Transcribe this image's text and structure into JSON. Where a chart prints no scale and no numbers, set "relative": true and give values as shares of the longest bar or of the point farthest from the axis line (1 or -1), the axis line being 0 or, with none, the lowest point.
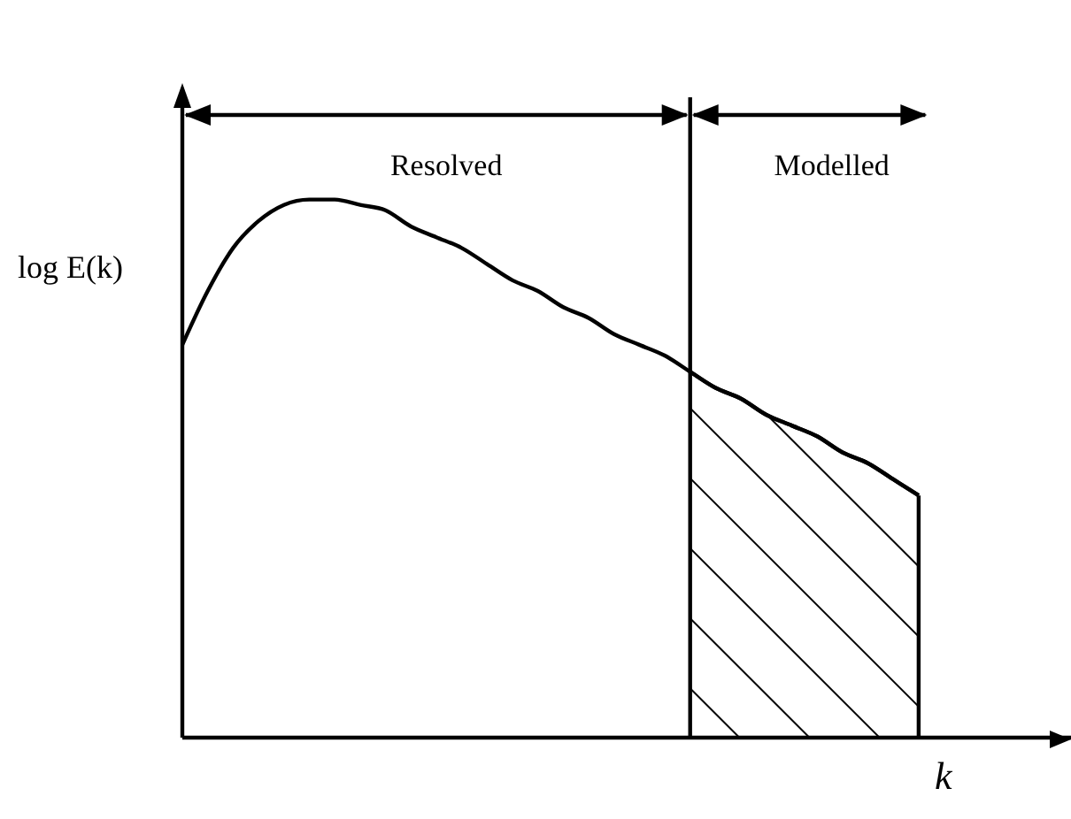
{
  "chart_data": {
    "type": "line",
    "relative": true,
    "xlabel": "k",
    "ylabel": "log E(k)",
    "annotations": [
      "Resolved",
      "Modelled"
    ],
    "categories": [
      null,
      null,
      null,
      null,
      null,
      null,
      null,
      null,
      null,
      null,
      null,
      null,
      null,
      null,
      null,
      null,
      null,
      null,
      null,
      null,
      null,
      null,
      null,
      null,
      null,
      null,
      null,
      null,
      null,
      null,
      null,
      null,
      null,
      null,
      null,
      null
    ],
    "series": [
      {
        "color": "#000000",
        "values": [
          0.73,
          0.83,
          0.91,
          0.96,
          0.99,
          1,
          1,
          0.99,
          0.98,
          0.95,
          0.93,
          0.91,
          0.88,
          0.85,
          0.83,
          0.8,
          0.78,
          0.75,
          0.73,
          0.71,
          0.68,
          0.65,
          0.63,
          0.6,
          0.58,
          0.56,
          0.53,
          0.51,
          0.48,
          0.45,
          null,
          null,
          null,
          null,
          null,
          null
        ]
      },
      {
        "type": "area",
        "color": "#000000",
        "values": [
          null,
          null,
          null,
          null,
          null,
          null,
          null,
          null,
          null,
          null,
          null,
          null,
          null,
          null,
          null,
          null,
          null,
          null,
          null,
          null,
          0.68,
          0.65,
          0.63,
          0.6,
          0.58,
          0.56,
          0.53,
          0.51,
          0.48,
          0.45,
          null,
          null,
          null,
          null,
          null,
          null
        ]
      }
    ]
  }
}
